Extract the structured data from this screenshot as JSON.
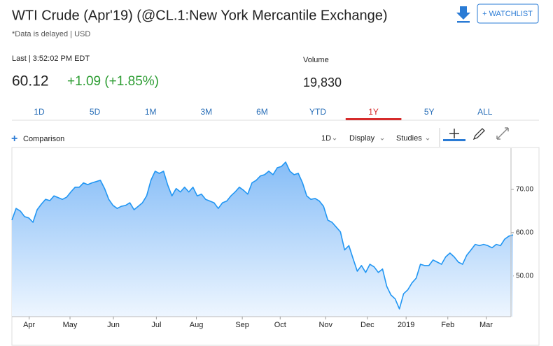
{
  "header": {
    "title": "WTI Crude (Apr'19) (@CL.1:New York Mercantile Exchange)",
    "subtitle": "*Data is delayed | USD",
    "watchlist": "+ WATCHLIST"
  },
  "quote": {
    "last_label": "Last | 3:52:02 PM EDT",
    "price": "60.12",
    "change": "+1.09 (+1.85%)",
    "volume_label": "Volume",
    "volume": "19,830"
  },
  "range_tabs": {
    "items": [
      "1D",
      "5D",
      "1M",
      "3M",
      "6M",
      "YTD",
      "1Y",
      "5Y",
      "ALL"
    ],
    "active": "1Y"
  },
  "toolbar": {
    "comparison": "Comparison",
    "interval": "1D",
    "display": "Display",
    "studies": "Studies"
  },
  "chart_data": {
    "type": "area",
    "color": "#2196f3",
    "values": [
      62.9,
      65.6,
      65,
      63.7,
      63.4,
      62.4,
      65.3,
      66.6,
      67.7,
      67.4,
      68.5,
      68.1,
      67.7,
      68.2,
      69.4,
      70.5,
      70.5,
      71.5,
      71.1,
      71.5,
      71.8,
      72.1,
      70.2,
      67.7,
      66.3,
      65.6,
      66.1,
      66.3,
      66.9,
      65.3,
      66.1,
      66.9,
      68.5,
      72.1,
      74.2,
      73.7,
      74.2,
      71,
      68.5,
      70.2,
      69.4,
      70.5,
      69.4,
      70.5,
      68.5,
      68.9,
      67.7,
      67.3,
      66.9,
      65.6,
      66.9,
      67.3,
      68.5,
      69.4,
      70.5,
      69.8,
      68.9,
      71.5,
      72.1,
      73.1,
      73.4,
      74.2,
      73.4,
      75,
      75.3,
      76.3,
      74.2,
      73.4,
      73.7,
      71.5,
      68.5,
      67.7,
      67.9,
      67.3,
      66.1,
      62.9,
      62.4,
      61.3,
      60.2,
      56,
      57,
      54,
      51.1,
      52.4,
      50.8,
      52.7,
      52.1,
      50.8,
      51.6,
      47.6,
      45.6,
      44.7,
      42.4,
      45.9,
      46.8,
      48.4,
      49.5,
      52.7,
      52.4,
      52.4,
      53.7,
      53.2,
      52.7,
      54.4,
      55.3,
      54.4,
      53.2,
      52.7,
      54.8,
      56,
      57.3,
      57,
      57.3,
      57,
      56.5,
      57.3,
      57,
      58.5,
      59.2,
      59.5
    ],
    "xlim": [
      0,
      118.5
    ],
    "xticks": [
      {
        "value": 4.1,
        "label": "Apr"
      },
      {
        "value": 13.8,
        "label": "May"
      },
      {
        "value": 24.1,
        "label": "Jun"
      },
      {
        "value": 34.3,
        "label": "Jul"
      },
      {
        "value": 43.8,
        "label": "Aug"
      },
      {
        "value": 54.7,
        "label": "Sep"
      },
      {
        "value": 63.7,
        "label": "Oct"
      },
      {
        "value": 74.5,
        "label": "Nov"
      },
      {
        "value": 84.4,
        "label": "Dec"
      },
      {
        "value": 93.6,
        "label": "2019"
      },
      {
        "value": 103.5,
        "label": "Feb"
      },
      {
        "value": 112.6,
        "label": "Mar"
      }
    ],
    "ylim": [
      40.6,
      77.9
    ],
    "yticks": [
      {
        "value": 50,
        "label": "50.00"
      },
      {
        "value": 60,
        "label": "60.00"
      },
      {
        "value": 70,
        "label": "70.00"
      }
    ]
  }
}
